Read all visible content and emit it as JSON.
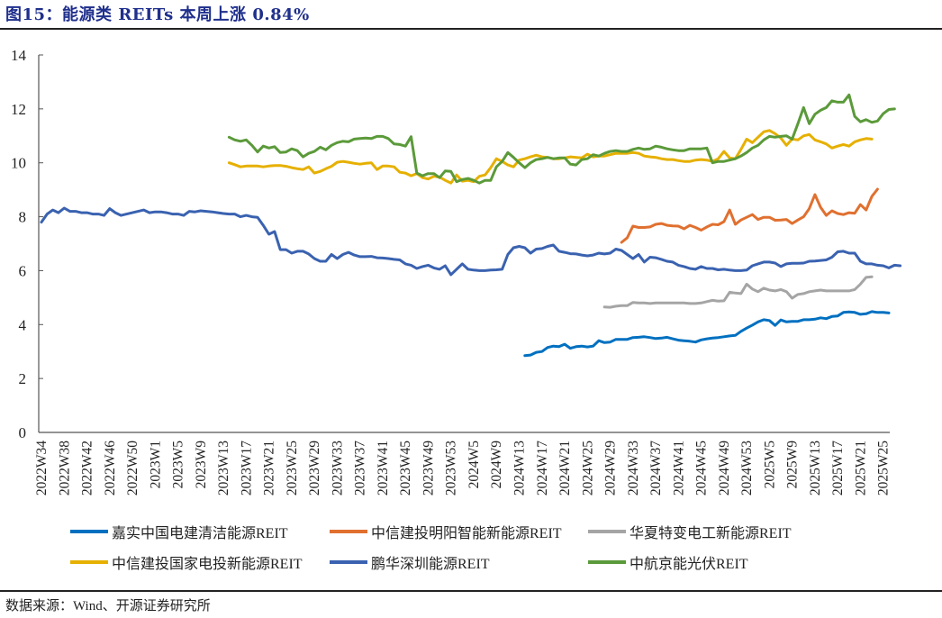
{
  "header": {
    "title": "图15：能源类 REITs 本周上涨 0.84%"
  },
  "footer": {
    "source": "数据来源：Wind、开源证券研究所"
  },
  "chart_data": {
    "type": "line",
    "title": "能源类 REITs 本周上涨 0.84%",
    "xlabel": "",
    "ylabel": "",
    "ylim": [
      0,
      14
    ],
    "yticks": [
      0,
      2,
      4,
      6,
      8,
      10,
      12,
      14
    ],
    "grid": false,
    "legend_position": "bottom",
    "x_tick_labels": [
      "2022W34",
      "2022W38",
      "2022W42",
      "2022W46",
      "2022W50",
      "2023W1",
      "2023W5",
      "2023W9",
      "2023W13",
      "2023W17",
      "2023W21",
      "2023W25",
      "2023W29",
      "2023W33",
      "2023W37",
      "2023W41",
      "2023W45",
      "2023W49",
      "2023W53",
      "2024W5",
      "2024W9",
      "2024W13",
      "2024W17",
      "2024W21",
      "2024W25",
      "2024W29",
      "2024W33",
      "2024W37",
      "2024W41",
      "2024W45",
      "2024W49",
      "2024W53",
      "2025W5",
      "2025W9",
      "2025W13",
      "2025W17",
      "2025W21",
      "2025W25"
    ],
    "x_tick_step": 4,
    "num_points": 150,
    "series": [
      {
        "name": "嘉实中国电建清洁能源REIT",
        "color": "#0070c0",
        "start": 85,
        "values": [
          2.85,
          2.87,
          2.97,
          3.0,
          3.15,
          3.2,
          3.18,
          3.27,
          3.12,
          3.18,
          3.2,
          3.17,
          3.2,
          3.4,
          3.33,
          3.35,
          3.45,
          3.45,
          3.45,
          3.52,
          3.53,
          3.55,
          3.52,
          3.48,
          3.5,
          3.53,
          3.47,
          3.42,
          3.4,
          3.38,
          3.35,
          3.43,
          3.47,
          3.5,
          3.52,
          3.55,
          3.58,
          3.6,
          3.75,
          3.87,
          3.98,
          4.1,
          4.18,
          4.15,
          3.97,
          4.17,
          4.1,
          4.12,
          4.12,
          4.18,
          4.18,
          4.2,
          4.25,
          4.22,
          4.3,
          4.32,
          4.45,
          4.47,
          4.45,
          4.38,
          4.4,
          4.48,
          4.45,
          4.45,
          4.43
        ]
      },
      {
        "name": "中信建投明阳智能新能源REIT",
        "color": "#e07030",
        "start": 102,
        "values": [
          7.05,
          7.22,
          7.65,
          7.6,
          7.6,
          7.62,
          7.72,
          7.75,
          7.68,
          7.66,
          7.65,
          7.55,
          7.68,
          7.6,
          7.5,
          7.62,
          7.72,
          7.7,
          7.82,
          8.25,
          7.72,
          7.88,
          7.98,
          8.08,
          7.9,
          7.98,
          7.98,
          7.87,
          7.88,
          7.9,
          7.75,
          7.88,
          8.0,
          8.3,
          8.82,
          8.35,
          8.05,
          8.22,
          8.12,
          8.08,
          8.15,
          8.13,
          8.45,
          8.25,
          8.75,
          9.02
        ]
      },
      {
        "name": "华夏特变电工新能源REIT",
        "color": "#a5a5a5",
        "start": 99,
        "values": [
          4.65,
          4.64,
          4.68,
          4.7,
          4.7,
          4.82,
          4.8,
          4.8,
          4.78,
          4.8,
          4.8,
          4.8,
          4.8,
          4.8,
          4.8,
          4.78,
          4.78,
          4.8,
          4.85,
          4.9,
          4.87,
          4.88,
          5.2,
          5.17,
          5.15,
          5.5,
          5.32,
          5.22,
          5.35,
          5.28,
          5.25,
          5.3,
          5.22,
          4.98,
          5.12,
          5.15,
          5.22,
          5.25,
          5.28,
          5.25,
          5.25,
          5.25,
          5.25,
          5.25,
          5.3,
          5.5,
          5.75,
          5.77
        ]
      },
      {
        "name": "中信建投国家电投新能源REIT",
        "color": "#e6b000",
        "start": 33,
        "values": [
          10.0,
          9.93,
          9.85,
          9.88,
          9.88,
          9.88,
          9.85,
          9.88,
          9.9,
          9.9,
          9.87,
          9.82,
          9.78,
          9.75,
          9.85,
          9.62,
          9.68,
          9.78,
          9.87,
          10.02,
          10.05,
          10.02,
          9.98,
          9.95,
          9.98,
          10.0,
          9.75,
          9.88,
          9.88,
          9.85,
          9.65,
          9.62,
          9.52,
          9.6,
          9.45,
          9.4,
          9.5,
          9.47,
          9.35,
          9.25,
          9.55,
          9.32,
          9.35,
          9.3,
          9.5,
          9.55,
          9.82,
          10.15,
          10.05,
          9.92,
          9.85,
          10.1,
          10.15,
          10.22,
          10.28,
          10.22,
          10.2,
          10.15,
          10.15,
          10.18,
          10.22,
          10.2,
          10.18,
          10.32,
          10.22,
          10.25,
          10.25,
          10.3,
          10.35,
          10.35,
          10.35,
          10.38,
          10.35,
          10.25,
          10.22,
          10.2,
          10.15,
          10.12,
          10.12,
          10.08,
          10.05,
          10.05,
          10.1,
          10.12,
          10.1,
          10.05,
          10.15,
          10.42,
          10.18,
          10.15,
          10.5,
          10.88,
          10.75,
          10.95,
          11.15,
          11.2,
          11.08,
          10.92,
          10.65,
          10.88,
          10.85,
          11.0,
          11.05,
          10.85,
          10.78,
          10.7,
          10.55,
          10.62,
          10.68,
          10.62,
          10.78,
          10.85,
          10.9,
          10.88
        ]
      },
      {
        "name": "鹏华深圳能源REIT",
        "color": "#3a62b0",
        "start": 0,
        "values": [
          7.8,
          8.1,
          8.25,
          8.15,
          8.32,
          8.2,
          8.2,
          8.15,
          8.15,
          8.1,
          8.1,
          8.05,
          8.3,
          8.15,
          8.05,
          8.1,
          8.15,
          8.2,
          8.25,
          8.15,
          8.18,
          8.18,
          8.15,
          8.1,
          8.1,
          8.05,
          8.2,
          8.18,
          8.22,
          8.2,
          8.18,
          8.15,
          8.12,
          8.1,
          8.1,
          8.0,
          8.05,
          8.0,
          7.98,
          7.68,
          7.35,
          7.45,
          6.78,
          6.78,
          6.65,
          6.72,
          6.72,
          6.62,
          6.45,
          6.35,
          6.35,
          6.6,
          6.45,
          6.6,
          6.68,
          6.58,
          6.52,
          6.52,
          6.53,
          6.48,
          6.47,
          6.45,
          6.42,
          6.4,
          6.25,
          6.2,
          6.08,
          6.15,
          6.2,
          6.1,
          6.05,
          6.18,
          5.85,
          6.05,
          6.25,
          6.05,
          6.02,
          6.0,
          6.0,
          6.02,
          6.03,
          6.05,
          6.6,
          6.85,
          6.9,
          6.85,
          6.65,
          6.8,
          6.82,
          6.9,
          6.95,
          6.72,
          6.68,
          6.63,
          6.62,
          6.58,
          6.55,
          6.58,
          6.65,
          6.62,
          6.65,
          6.8,
          6.75,
          6.6,
          6.45,
          6.6,
          6.32,
          6.5,
          6.48,
          6.42,
          6.35,
          6.32,
          6.2,
          6.15,
          6.08,
          6.05,
          6.15,
          6.08,
          6.08,
          6.03,
          6.05,
          6.02,
          6.0,
          6.0,
          6.02,
          6.18,
          6.25,
          6.32,
          6.32,
          6.28,
          6.15,
          6.25,
          6.27,
          6.27,
          6.28,
          6.35,
          6.36,
          6.38,
          6.4,
          6.5,
          6.7,
          6.72,
          6.65,
          6.65,
          6.35,
          6.25,
          6.25,
          6.2,
          6.18,
          6.1,
          6.2,
          6.18
        ]
      },
      {
        "name": "中航京能光伏REIT",
        "color": "#5b9a3a",
        "start": 33,
        "values": [
          10.95,
          10.85,
          10.8,
          10.85,
          10.65,
          10.4,
          10.62,
          10.55,
          10.6,
          10.38,
          10.4,
          10.52,
          10.45,
          10.22,
          10.35,
          10.42,
          10.58,
          10.48,
          10.65,
          10.75,
          10.8,
          10.78,
          10.88,
          10.9,
          10.92,
          10.9,
          10.98,
          10.98,
          10.9,
          10.7,
          10.68,
          10.62,
          10.97,
          9.62,
          9.52,
          9.6,
          9.6,
          9.45,
          9.7,
          9.68,
          9.3,
          9.38,
          9.42,
          9.35,
          9.25,
          9.35,
          9.35,
          9.85,
          10.05,
          10.38,
          10.2,
          10.0,
          9.82,
          10.0,
          10.12,
          10.15,
          10.2,
          10.15,
          10.18,
          10.18,
          9.95,
          9.92,
          10.12,
          10.15,
          10.3,
          10.25,
          10.35,
          10.42,
          10.45,
          10.42,
          10.42,
          10.5,
          10.55,
          10.5,
          10.52,
          10.62,
          10.58,
          10.52,
          10.48,
          10.45,
          10.45,
          10.52,
          10.52,
          10.52,
          10.55,
          10.0,
          10.05,
          10.05,
          10.1,
          10.15,
          10.25,
          10.38,
          10.55,
          10.65,
          10.85,
          10.98,
          10.95,
          10.98,
          11.0,
          10.88,
          11.45,
          12.05,
          11.45,
          11.8,
          11.95,
          12.05,
          12.3,
          12.25,
          12.25,
          12.52,
          11.72,
          11.52,
          11.6,
          11.5,
          11.55,
          11.82,
          11.98,
          12.0
        ]
      }
    ]
  },
  "legend": {
    "items": [
      {
        "label": "嘉实中国电建清洁能源REIT",
        "color": "#0070c0"
      },
      {
        "label": "中信建投明阳智能新能源REIT",
        "color": "#e07030"
      },
      {
        "label": "华夏特变电工新能源REIT",
        "color": "#a5a5a5"
      },
      {
        "label": "中信建投国家电投新能源REIT",
        "color": "#e6b000"
      },
      {
        "label": "鹏华深圳能源REIT",
        "color": "#3a62b0"
      },
      {
        "label": "中航京能光伏REIT",
        "color": "#5b9a3a"
      }
    ]
  }
}
